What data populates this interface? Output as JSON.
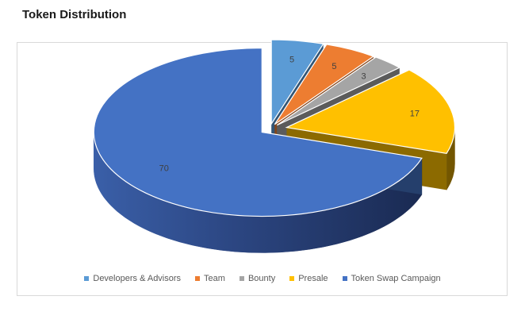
{
  "title": "Token Distribution",
  "chart_data": {
    "type": "pie",
    "title": "Token Distribution",
    "three_d": true,
    "exploded": true,
    "slices": [
      {
        "label": "Developers & Advisors",
        "value": 5,
        "color": "#5B9BD5"
      },
      {
        "label": "Team",
        "value": 5,
        "color": "#ED7D31"
      },
      {
        "label": "Bounty",
        "value": 3,
        "color": "#A5A5A5"
      },
      {
        "label": "Presale",
        "value": 17,
        "color": "#FFC000"
      },
      {
        "label": "Token Swap Campaign",
        "value": 70,
        "color": "#4472C4"
      }
    ],
    "legend_position": "bottom"
  }
}
